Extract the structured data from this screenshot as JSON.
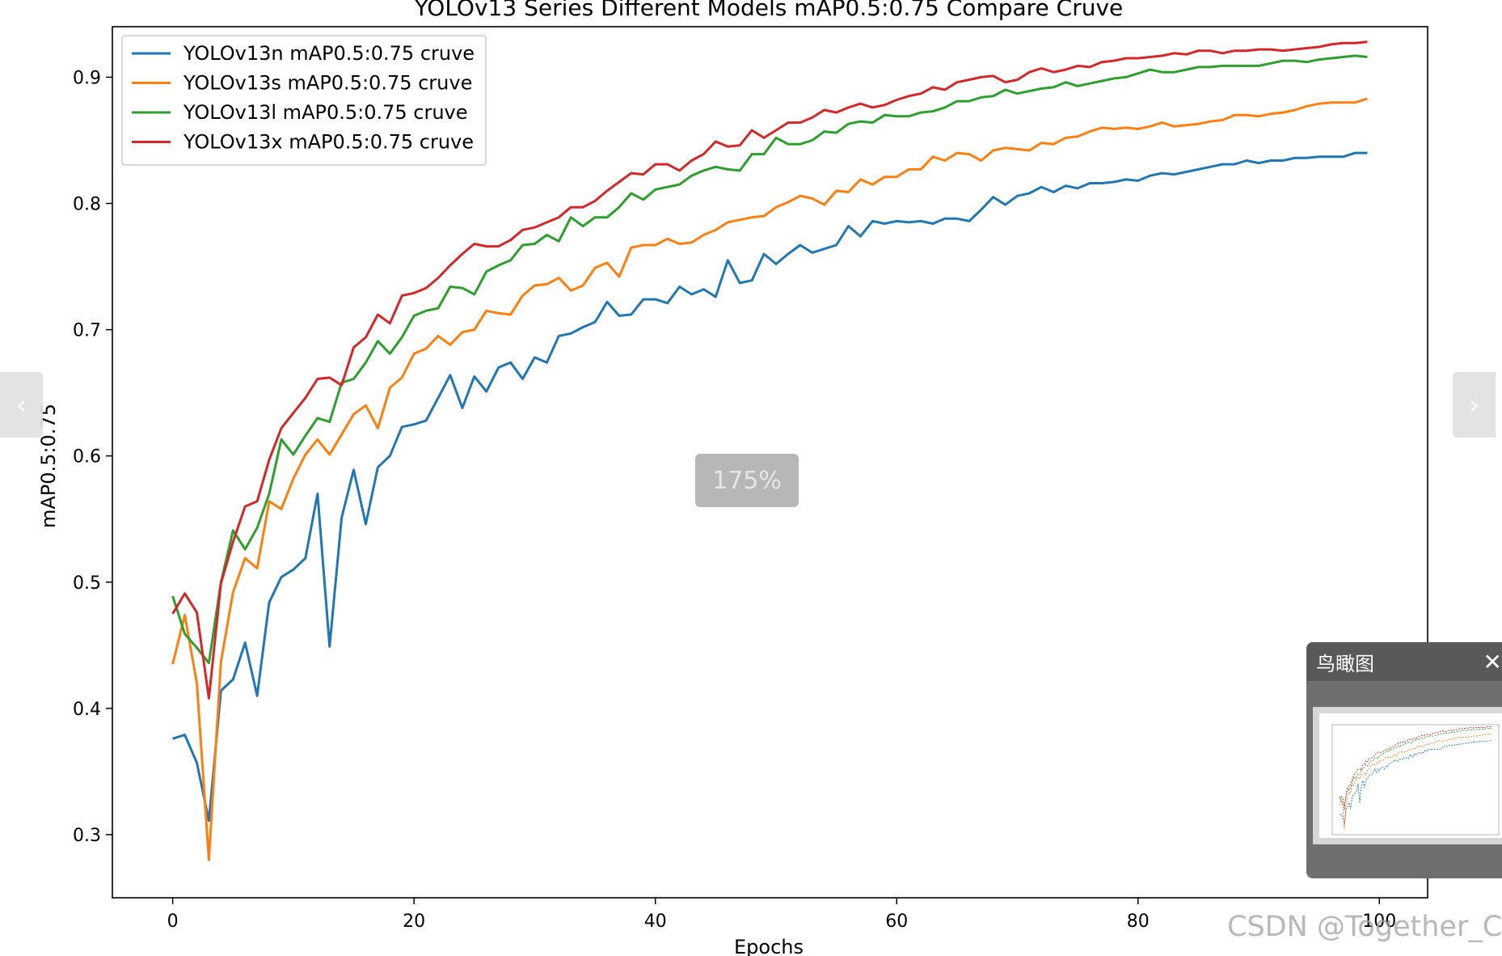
{
  "viewer": {
    "zoom": "175%",
    "prev_glyph": "‹",
    "next_glyph": "›",
    "prev_icon": "chevron-left-icon",
    "next_icon": "chevron-right-icon",
    "minimap": {
      "title": "鸟瞰图",
      "close_glyph": "✕",
      "close_icon": "close-icon"
    },
    "watermark": "CSDN @Together_CZ"
  },
  "chart_data": {
    "type": "line",
    "title": "YOLOv13 Series Different Models mAP0.5:0.75 Compare Cruve",
    "xlabel": "Epochs",
    "ylabel": "mAP0.5:0.75",
    "xlim": [
      -5,
      104
    ],
    "ylim": [
      0.25,
      0.94
    ],
    "xticks": [
      0,
      20,
      40,
      60,
      80,
      100
    ],
    "yticks": [
      0.3,
      0.4,
      0.5,
      0.6,
      0.7,
      0.8,
      0.9
    ],
    "grid": false,
    "legend_position": "top-left",
    "series": [
      {
        "name": "YOLOv13n mAP0.5:0.75 cruve",
        "color": "#1f77b4",
        "x": [
          0,
          1,
          2,
          3,
          4,
          5,
          6,
          7,
          8,
          9,
          10,
          11,
          12,
          13,
          14,
          15,
          16,
          17,
          18,
          19,
          20,
          21,
          22,
          23,
          24,
          25,
          26,
          27,
          28,
          29,
          30,
          31,
          32,
          33,
          34,
          35,
          36,
          37,
          38,
          39,
          40,
          41,
          42,
          43,
          44,
          45,
          46,
          47,
          48,
          49,
          50,
          51,
          52,
          53,
          54,
          55,
          56,
          57,
          58,
          59,
          60,
          61,
          62,
          63,
          64,
          65,
          66,
          67,
          68,
          69,
          70,
          71,
          72,
          73,
          74,
          75,
          76,
          77,
          78,
          79,
          80,
          81,
          82,
          83,
          84,
          85,
          86,
          87,
          88,
          89,
          90,
          91,
          92,
          93,
          94,
          95,
          96,
          97,
          98,
          99
        ],
        "y": [
          0.376,
          0.379,
          0.357,
          0.311,
          0.414,
          0.423,
          0.452,
          0.41,
          0.484,
          0.504,
          0.51,
          0.519,
          0.57,
          0.449,
          0.551,
          0.589,
          0.546,
          0.591,
          0.6,
          0.623,
          0.625,
          0.628,
          0.646,
          0.664,
          0.638,
          0.663,
          0.651,
          0.67,
          0.674,
          0.661,
          0.678,
          0.674,
          0.695,
          0.697,
          0.702,
          0.706,
          0.722,
          0.711,
          0.712,
          0.724,
          0.724,
          0.721,
          0.734,
          0.728,
          0.732,
          0.726,
          0.755,
          0.737,
          0.739,
          0.76,
          0.752,
          0.76,
          0.767,
          0.761,
          0.764,
          0.767,
          0.782,
          0.774,
          0.786,
          0.784,
          0.786,
          0.785,
          0.786,
          0.784,
          0.788,
          0.788,
          0.786,
          0.795,
          0.805,
          0.799,
          0.806,
          0.808,
          0.813,
          0.809,
          0.814,
          0.812,
          0.816,
          0.816,
          0.817,
          0.819,
          0.818,
          0.822,
          0.824,
          0.823,
          0.825,
          0.827,
          0.829,
          0.831,
          0.831,
          0.834,
          0.832,
          0.834,
          0.834,
          0.836,
          0.836,
          0.837,
          0.837,
          0.837,
          0.84,
          0.84
        ]
      },
      {
        "name": "YOLOv13s mAP0.5:0.75 cruve",
        "color": "#ff7f0e",
        "x": [
          0,
          1,
          2,
          3,
          4,
          5,
          6,
          7,
          8,
          9,
          10,
          11,
          12,
          13,
          14,
          15,
          16,
          17,
          18,
          19,
          20,
          21,
          22,
          23,
          24,
          25,
          26,
          27,
          28,
          29,
          30,
          31,
          32,
          33,
          34,
          35,
          36,
          37,
          38,
          39,
          40,
          41,
          42,
          43,
          44,
          45,
          46,
          47,
          48,
          49,
          50,
          51,
          52,
          53,
          54,
          55,
          56,
          57,
          58,
          59,
          60,
          61,
          62,
          63,
          64,
          65,
          66,
          67,
          68,
          69,
          70,
          71,
          72,
          73,
          74,
          75,
          76,
          77,
          78,
          79,
          80,
          81,
          82,
          83,
          84,
          85,
          86,
          87,
          88,
          89,
          90,
          91,
          92,
          93,
          94,
          95,
          96,
          97,
          98,
          99
        ],
        "y": [
          0.435,
          0.474,
          0.42,
          0.28,
          0.437,
          0.492,
          0.519,
          0.511,
          0.564,
          0.558,
          0.582,
          0.601,
          0.613,
          0.601,
          0.617,
          0.633,
          0.64,
          0.622,
          0.654,
          0.662,
          0.681,
          0.685,
          0.695,
          0.688,
          0.698,
          0.7,
          0.715,
          0.713,
          0.712,
          0.727,
          0.735,
          0.736,
          0.741,
          0.731,
          0.735,
          0.749,
          0.753,
          0.742,
          0.765,
          0.767,
          0.767,
          0.772,
          0.768,
          0.769,
          0.775,
          0.779,
          0.785,
          0.787,
          0.789,
          0.79,
          0.797,
          0.801,
          0.806,
          0.804,
          0.799,
          0.81,
          0.809,
          0.819,
          0.815,
          0.821,
          0.821,
          0.827,
          0.827,
          0.837,
          0.834,
          0.84,
          0.839,
          0.834,
          0.842,
          0.844,
          0.843,
          0.842,
          0.848,
          0.847,
          0.852,
          0.853,
          0.857,
          0.86,
          0.859,
          0.86,
          0.859,
          0.861,
          0.864,
          0.861,
          0.862,
          0.863,
          0.865,
          0.866,
          0.87,
          0.87,
          0.869,
          0.871,
          0.872,
          0.874,
          0.877,
          0.879,
          0.88,
          0.88,
          0.88,
          0.883
        ]
      },
      {
        "name": "YOLOv13l mAP0.5:0.75 cruve",
        "color": "#2ca02c",
        "x": [
          0,
          1,
          2,
          3,
          4,
          5,
          6,
          7,
          8,
          9,
          10,
          11,
          12,
          13,
          14,
          15,
          16,
          17,
          18,
          19,
          20,
          21,
          22,
          23,
          24,
          25,
          26,
          27,
          28,
          29,
          30,
          31,
          32,
          33,
          34,
          35,
          36,
          37,
          38,
          39,
          40,
          41,
          42,
          43,
          44,
          45,
          46,
          47,
          48,
          49,
          50,
          51,
          52,
          53,
          54,
          55,
          56,
          57,
          58,
          59,
          60,
          61,
          62,
          63,
          64,
          65,
          66,
          67,
          68,
          69,
          70,
          71,
          72,
          73,
          74,
          75,
          76,
          77,
          78,
          79,
          80,
          81,
          82,
          83,
          84,
          85,
          86,
          87,
          88,
          89,
          90,
          91,
          92,
          93,
          94,
          95,
          96,
          97,
          98,
          99
        ],
        "y": [
          0.489,
          0.459,
          0.448,
          0.436,
          0.5,
          0.541,
          0.526,
          0.543,
          0.57,
          0.613,
          0.601,
          0.616,
          0.63,
          0.627,
          0.658,
          0.661,
          0.674,
          0.691,
          0.681,
          0.694,
          0.711,
          0.715,
          0.717,
          0.734,
          0.733,
          0.728,
          0.746,
          0.751,
          0.755,
          0.767,
          0.768,
          0.775,
          0.77,
          0.789,
          0.782,
          0.789,
          0.789,
          0.797,
          0.808,
          0.803,
          0.811,
          0.813,
          0.815,
          0.822,
          0.826,
          0.829,
          0.827,
          0.826,
          0.839,
          0.839,
          0.852,
          0.847,
          0.847,
          0.85,
          0.857,
          0.856,
          0.863,
          0.865,
          0.864,
          0.87,
          0.869,
          0.869,
          0.872,
          0.873,
          0.876,
          0.881,
          0.881,
          0.884,
          0.885,
          0.89,
          0.887,
          0.889,
          0.891,
          0.892,
          0.896,
          0.893,
          0.895,
          0.897,
          0.899,
          0.9,
          0.903,
          0.906,
          0.904,
          0.904,
          0.906,
          0.908,
          0.908,
          0.909,
          0.909,
          0.909,
          0.909,
          0.911,
          0.913,
          0.913,
          0.912,
          0.914,
          0.915,
          0.916,
          0.917,
          0.916
        ]
      },
      {
        "name": "YOLOv13x mAP0.5:0.75 cruve",
        "color": "#d62728",
        "x": [
          0,
          1,
          2,
          3,
          4,
          5,
          6,
          7,
          8,
          9,
          10,
          11,
          12,
          13,
          14,
          15,
          16,
          17,
          18,
          19,
          20,
          21,
          22,
          23,
          24,
          25,
          26,
          27,
          28,
          29,
          30,
          31,
          32,
          33,
          34,
          35,
          36,
          37,
          38,
          39,
          40,
          41,
          42,
          43,
          44,
          45,
          46,
          47,
          48,
          49,
          50,
          51,
          52,
          53,
          54,
          55,
          56,
          57,
          58,
          59,
          60,
          61,
          62,
          63,
          64,
          65,
          66,
          67,
          68,
          69,
          70,
          71,
          72,
          73,
          74,
          75,
          76,
          77,
          78,
          79,
          80,
          81,
          82,
          83,
          84,
          85,
          86,
          87,
          88,
          89,
          90,
          91,
          92,
          93,
          94,
          95,
          96,
          97,
          98,
          99
        ],
        "y": [
          0.475,
          0.491,
          0.476,
          0.408,
          0.499,
          0.532,
          0.56,
          0.564,
          0.597,
          0.622,
          0.634,
          0.646,
          0.661,
          0.662,
          0.656,
          0.686,
          0.694,
          0.712,
          0.705,
          0.727,
          0.729,
          0.733,
          0.741,
          0.751,
          0.76,
          0.768,
          0.766,
          0.766,
          0.771,
          0.779,
          0.781,
          0.785,
          0.789,
          0.797,
          0.797,
          0.802,
          0.81,
          0.817,
          0.824,
          0.823,
          0.831,
          0.831,
          0.826,
          0.834,
          0.839,
          0.849,
          0.845,
          0.846,
          0.858,
          0.852,
          0.858,
          0.864,
          0.864,
          0.868,
          0.874,
          0.872,
          0.876,
          0.879,
          0.876,
          0.878,
          0.882,
          0.885,
          0.887,
          0.892,
          0.89,
          0.896,
          0.898,
          0.9,
          0.901,
          0.896,
          0.898,
          0.904,
          0.907,
          0.904,
          0.906,
          0.909,
          0.908,
          0.912,
          0.913,
          0.915,
          0.915,
          0.916,
          0.917,
          0.919,
          0.918,
          0.921,
          0.921,
          0.919,
          0.921,
          0.921,
          0.922,
          0.922,
          0.921,
          0.922,
          0.923,
          0.924,
          0.926,
          0.927,
          0.927,
          0.928
        ]
      }
    ]
  }
}
